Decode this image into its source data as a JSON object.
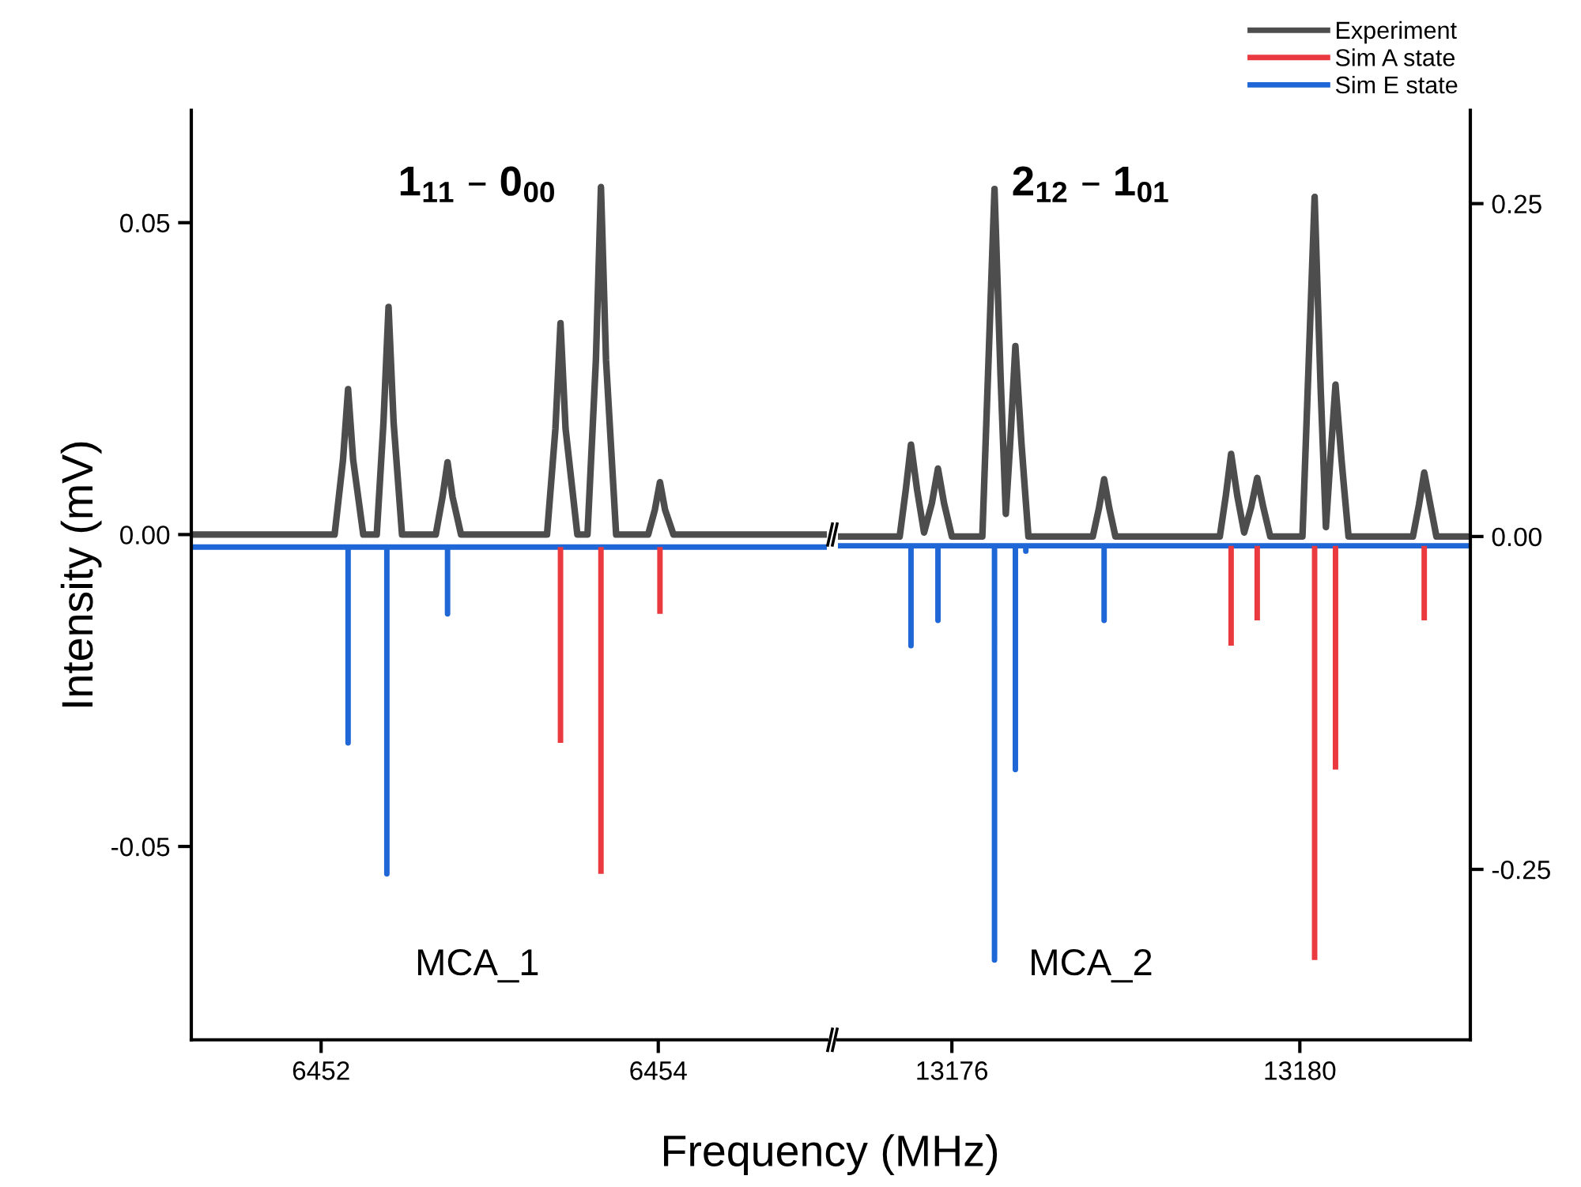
{
  "chart_data": [
    {
      "type": "line",
      "ylabel": "Intensity (mV)",
      "xlabel": "Frequency (MHz)",
      "annotations": [
        "1$_{11}$ – 0$_{00}$",
        "MCA_1"
      ],
      "xlim": [
        6451.23,
        6455.0
      ],
      "xticks": [
        6452,
        6454
      ],
      "ylim": [
        -0.081,
        0.068
      ],
      "yticks": [
        {
          "value": -0.05,
          "label": "-0.05"
        },
        {
          "value": 0,
          "label": "0.00"
        },
        {
          "value": 0.05,
          "label": "0.05"
        }
      ],
      "grid": false,
      "series": [
        {
          "color": "#ea3a3f",
          "x": [
            6453.42,
            6453.42,
            null,
            6453.66,
            6453.66,
            null,
            6454.01,
            6454.01
          ],
          "values": [
            -0.002,
            -0.0334,
            null,
            -0.002,
            -0.0544,
            null,
            -0.002,
            -0.0127
          ]
        },
        {
          "color": "#1f66d6",
          "x": [
            6451.23,
            6452.16,
            6452.16,
            6452.16,
            6452.39,
            6452.39,
            6452.39,
            6452.75,
            6452.75,
            6452.75,
            6455.0
          ],
          "values": [
            -0.002,
            -0.002,
            -0.0334,
            -0.002,
            -0.002,
            -0.0544,
            -0.002,
            -0.002,
            -0.0127,
            -0.002,
            -0.002
          ]
        },
        {
          "color": "#4d4d4d",
          "x": [
            6451.23,
            6452.08,
            6452.13,
            6452.16,
            6452.19,
            6452.25,
            6452.33,
            6452.37,
            6452.4,
            6452.43,
            6452.48,
            6452.68,
            6452.72,
            6452.75,
            6452.78,
            6452.83,
            6453.34,
            6453.39,
            6453.42,
            6453.45,
            6453.52,
            6453.58,
            6453.63,
            6453.66,
            6453.69,
            6453.75,
            6453.94,
            6453.98,
            6454.01,
            6454.04,
            6454.09,
            6455.0
          ],
          "values": [
            0,
            0,
            0.012,
            0.0233,
            0.012,
            0,
            0,
            0.018,
            0.0365,
            0.018,
            0,
            0,
            0.006,
            0.0116,
            0.006,
            0,
            0,
            0.017,
            0.0339,
            0.017,
            0,
            0,
            0.028,
            0.0557,
            0.028,
            0,
            0,
            0.004,
            0.0084,
            0.004,
            0,
            0
          ]
        }
      ]
    },
    {
      "type": "line",
      "annotations": [
        "2$_{12}$ – 1$_{01}$",
        "MCA_2"
      ],
      "xlim": [
        13174.69,
        13181.96
      ],
      "xticks": [
        13176,
        13180
      ],
      "y2lim": [
        -0.378,
        0.32
      ],
      "y2ticks": [
        {
          "value": -0.25,
          "label": "-0.25"
        },
        {
          "value": 0,
          "label": "0.00"
        },
        {
          "value": 0.25,
          "label": "0.25"
        }
      ],
      "grid": false,
      "legend": "top right",
      "series": [
        {
          "name": "Experiment",
          "color": "#4d4d4d",
          "axis": "y2",
          "x": [
            13174.69,
            13175.4,
            13175.47,
            13175.53,
            13175.6,
            13175.68,
            13175.77,
            13175.84,
            13175.91,
            13176.0,
            13176.35,
            13176.42,
            13176.49,
            13176.56,
            13176.62,
            13176.67,
            13176.73,
            13176.8,
            13176.88,
            13177.62,
            13177.69,
            13177.75,
            13177.81,
            13177.88,
            13179.08,
            13179.15,
            13179.21,
            13179.28,
            13179.36,
            13179.44,
            13179.51,
            13179.58,
            13179.66,
            13180.03,
            13180.1,
            13180.17,
            13180.24,
            13180.3,
            13180.35,
            13180.41,
            13180.48,
            13180.56,
            13181.3,
            13181.37,
            13181.43,
            13181.5,
            13181.57,
            13181.96
          ],
          "values": [
            0,
            0,
            0.035,
            0.069,
            0.035,
            0.003,
            0.025,
            0.051,
            0.025,
            0,
            0,
            0.13,
            0.261,
            0.12,
            0.017,
            0.07,
            0.143,
            0.07,
            0,
            0,
            0.021,
            0.043,
            0.021,
            0,
            0,
            0.031,
            0.062,
            0.031,
            0.003,
            0.022,
            0.044,
            0.022,
            0,
            0,
            0.127,
            0.255,
            0.11,
            0.007,
            0.057,
            0.114,
            0.057,
            0,
            0,
            0.024,
            0.048,
            0.024,
            0,
            0
          ]
        },
        {
          "name": "Sim A state",
          "color": "#ea3a3f",
          "axis": "y2",
          "x": [
            13179.21,
            13179.21,
            null,
            13179.51,
            13179.51,
            null,
            13180.17,
            13180.17,
            null,
            13180.41,
            13180.41,
            null,
            13181.43,
            13181.43
          ],
          "values": [
            -0.007,
            -0.082,
            null,
            -0.007,
            -0.063,
            null,
            -0.007,
            -0.318,
            null,
            -0.007,
            -0.175,
            null,
            -0.007,
            -0.063
          ]
        },
        {
          "name": "Sim E state",
          "color": "#1f66d6",
          "axis": "y2",
          "x": [
            13174.69,
            13175.53,
            13175.53,
            13175.53,
            13175.84,
            13175.84,
            13175.84,
            13176.49,
            13176.49,
            13176.49,
            13176.73,
            13176.73,
            13176.73,
            13176.85,
            13176.85,
            13176.85,
            13177.75,
            13177.75,
            13177.75,
            13181.96
          ],
          "values": [
            -0.007,
            -0.007,
            -0.082,
            -0.007,
            -0.007,
            -0.063,
            -0.007,
            -0.007,
            -0.318,
            -0.007,
            -0.007,
            -0.175,
            -0.007,
            -0.007,
            -0.011,
            -0.007,
            -0.007,
            -0.063,
            -0.007,
            -0.007
          ]
        }
      ]
    }
  ]
}
